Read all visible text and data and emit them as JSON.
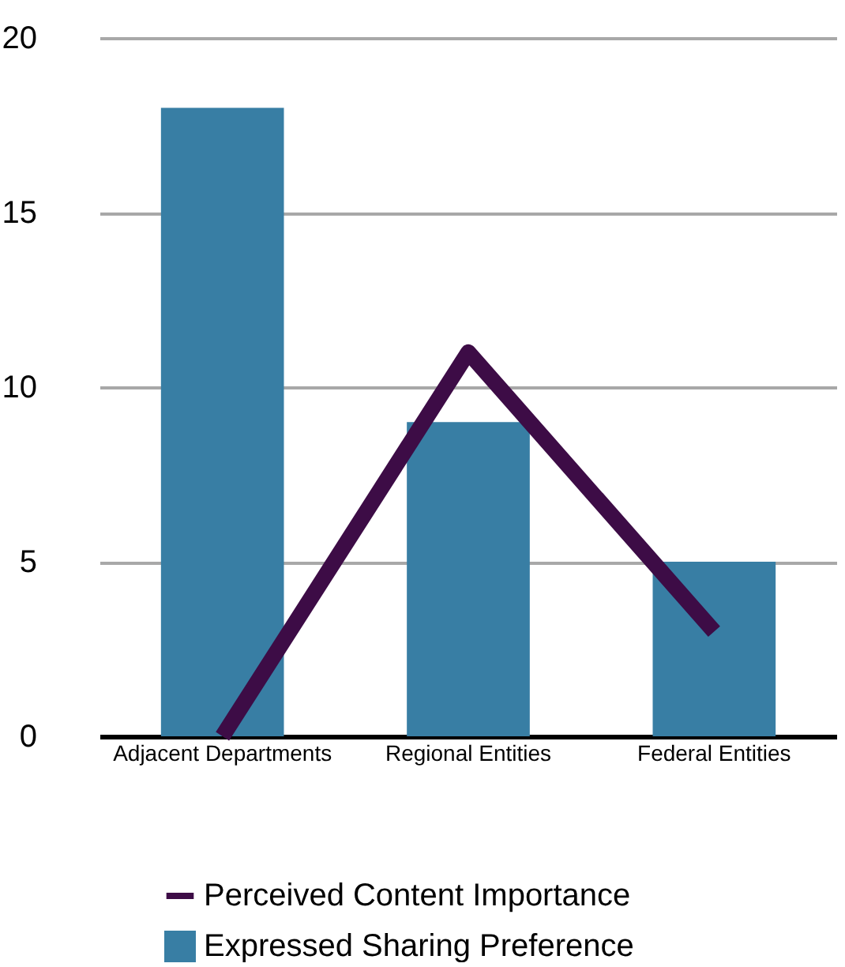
{
  "chart_data": {
    "type": "bar",
    "categories": [
      "Adjacent Departments",
      "Regional Entities",
      "Federal Entities"
    ],
    "series": [
      {
        "name": "Perceived Content Importance",
        "type": "line",
        "color": "#3d0c46",
        "values": [
          0,
          11,
          3
        ]
      },
      {
        "name": "Expressed Sharing Preference",
        "color": "#387ea4",
        "values": [
          18,
          9,
          5
        ]
      }
    ],
    "ylim": [
      0,
      20
    ],
    "yticks": [
      0,
      5,
      10,
      15,
      20
    ],
    "grid": "y",
    "legend": "bottom"
  }
}
